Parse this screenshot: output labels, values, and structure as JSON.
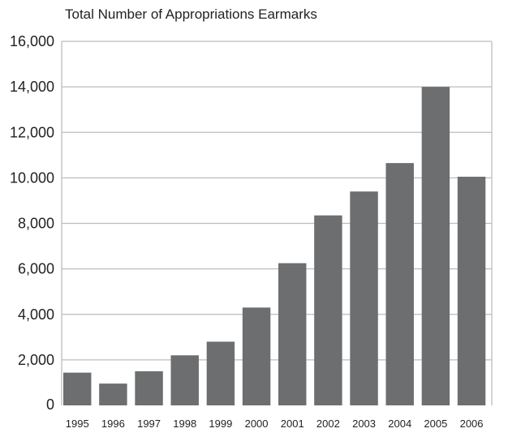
{
  "chart_data": {
    "type": "bar",
    "title": "Total Number of Appropriations Earmarks",
    "xlabel": "",
    "ylabel": "",
    "categories": [
      "1995",
      "1996",
      "1997",
      "1998",
      "1999",
      "2000",
      "2001",
      "2002",
      "2003",
      "2004",
      "2005",
      "2006"
    ],
    "values": [
      1439,
      958,
      1501,
      2200,
      2800,
      4300,
      6250,
      8350,
      9400,
      10650,
      14000,
      10050
    ],
    "ylim": [
      0,
      16000
    ],
    "yticks": [
      0,
      2000,
      4000,
      6000,
      8000,
      10000,
      12000,
      14000,
      16000
    ],
    "ytick_labels": [
      "0",
      "2,000",
      "4,000",
      "6,000",
      "8,000",
      "10.000",
      "12,000",
      "14,000",
      "16,000"
    ],
    "grid": true,
    "legend": "none",
    "colors": {
      "bar": "#6d6e70",
      "grid": "#bcbcbc",
      "text": "#231f20"
    }
  }
}
